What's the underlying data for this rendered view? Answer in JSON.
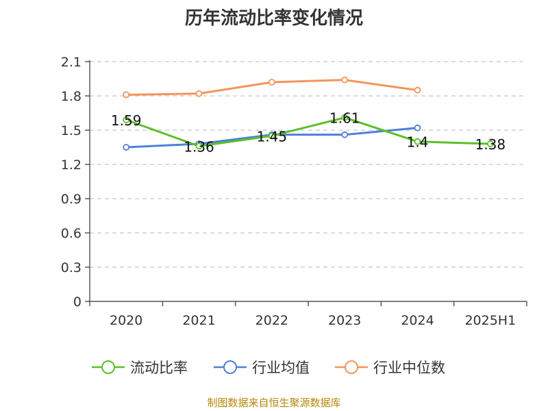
{
  "chart_data": {
    "type": "line",
    "title": "历年流动比率变化情况",
    "categories": [
      "2020",
      "2021",
      "2022",
      "2023",
      "2024",
      "2025H1"
    ],
    "ylim": [
      0,
      2.1
    ],
    "yticks": [
      "0",
      "0.3",
      "0.6",
      "0.9",
      "1.2",
      "1.5",
      "1.8",
      "2.1"
    ],
    "grid": "horizontal-dashed",
    "legend_position": "bottom",
    "series": [
      {
        "name": "流动比率",
        "color": "#5cbf2a",
        "values": [
          1.59,
          1.36,
          1.45,
          1.61,
          1.4,
          1.38
        ],
        "labels": [
          "1.59",
          "1.36",
          "1.45",
          "1.61",
          "1.4",
          "1.38"
        ]
      },
      {
        "name": "行业均值",
        "color": "#4f7fdc",
        "values": [
          1.35,
          1.38,
          1.46,
          1.46,
          1.52,
          null
        ]
      },
      {
        "name": "行业中位数",
        "color": "#f4945a",
        "values": [
          1.81,
          1.82,
          1.92,
          1.94,
          1.85,
          null
        ]
      }
    ]
  },
  "source_note": "制图数据来自恒生聚源数据库"
}
